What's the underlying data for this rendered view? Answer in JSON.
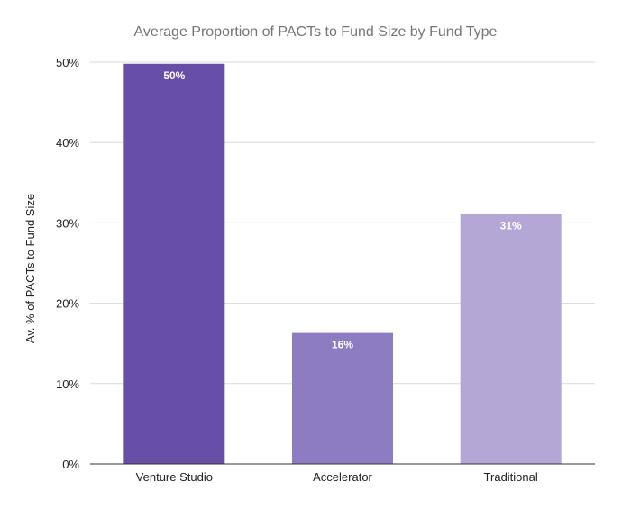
{
  "chart_data": {
    "type": "bar",
    "title": "Average Proportion of PACTs to Fund Size by Fund Type",
    "xlabel": "",
    "ylabel": "Av. % of PACTs to Fund Size",
    "categories": [
      "Venture Studio",
      "Accelerator",
      "Traditional"
    ],
    "values": [
      49.8,
      16.3,
      31.1
    ],
    "data_labels": [
      "50%",
      "16%",
      "31%"
    ],
    "colors": [
      "#674ea7",
      "#8e7cc3",
      "#b4a7d6"
    ],
    "ylim": [
      0,
      50
    ],
    "yticks": [
      0,
      10,
      20,
      30,
      40,
      50
    ],
    "ytick_labels": [
      "0%",
      "10%",
      "20%",
      "30%",
      "40%",
      "50%"
    ],
    "grid": true,
    "legend": "none"
  }
}
